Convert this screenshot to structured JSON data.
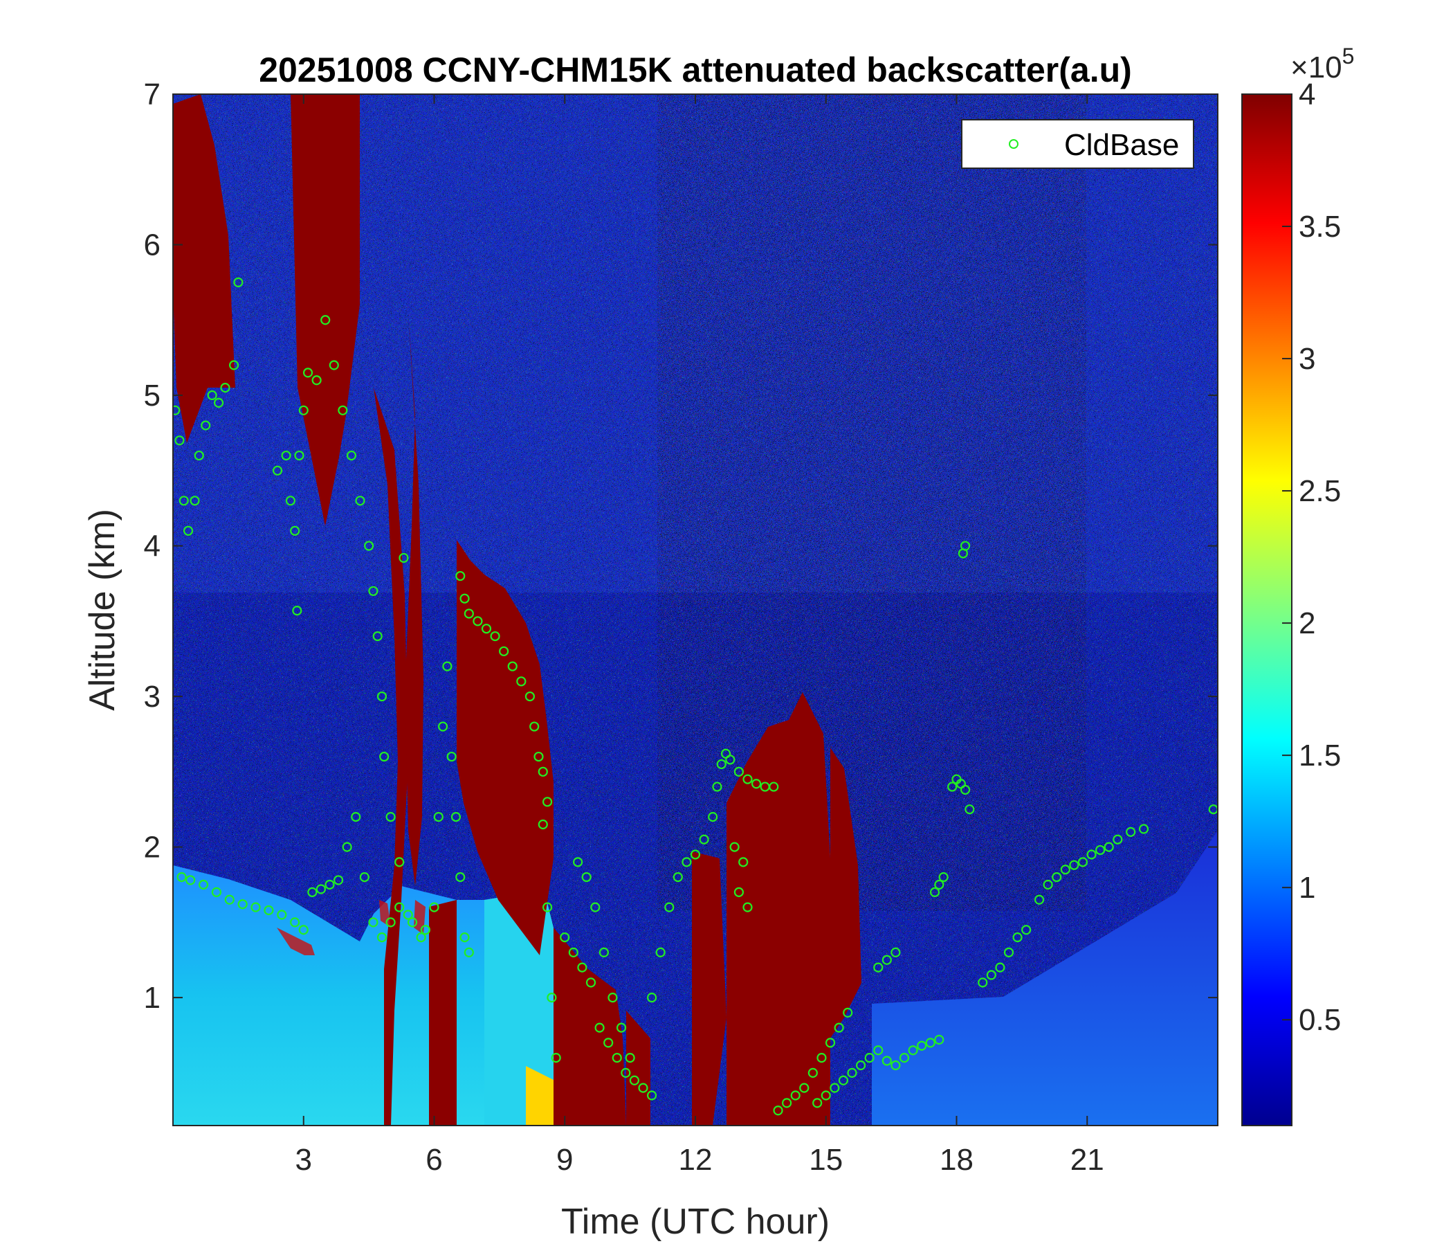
{
  "chart_data": {
    "type": "heatmap",
    "title": "20251008 CCNY-CHM15K attenuated backscatter(a.u)",
    "xlabel": "Time (UTC hour)",
    "ylabel": "Altitude (km)",
    "xlim": [
      0,
      24
    ],
    "ylim": [
      0.15,
      7
    ],
    "xticks": [
      3,
      6,
      9,
      12,
      15,
      18,
      21
    ],
    "xtick_labels": [
      "3",
      "6",
      "9",
      "12",
      "15",
      "18",
      "21"
    ],
    "yticks": [
      1,
      2,
      3,
      4,
      5,
      6,
      7
    ],
    "ytick_labels": [
      "1",
      "2",
      "3",
      "4",
      "5",
      "6",
      "7"
    ],
    "colorbar": {
      "colormap": "jet",
      "range": [
        0.1,
        4
      ],
      "ticks": [
        0.5,
        1,
        1.5,
        2,
        2.5,
        3,
        3.5,
        4
      ],
      "tick_labels": [
        "0.5",
        "1",
        "1.5",
        "2",
        "2.5",
        "3",
        "3.5",
        "4"
      ],
      "multiplier_base": "×10",
      "multiplier_exponent": "5"
    },
    "legend": {
      "position": "top-right",
      "entries": [
        "CldBase"
      ]
    },
    "series": [
      {
        "name": "CldBase",
        "marker": "open-circle",
        "color": "#22ee22",
        "points": [
          [
            0.05,
            4.9
          ],
          [
            0.15,
            4.7
          ],
          [
            0.25,
            4.3
          ],
          [
            0.35,
            4.1
          ],
          [
            0.5,
            4.3
          ],
          [
            0.6,
            4.6
          ],
          [
            0.75,
            4.8
          ],
          [
            0.9,
            5.0
          ],
          [
            1.05,
            4.95
          ],
          [
            1.2,
            5.05
          ],
          [
            1.4,
            5.2
          ],
          [
            1.5,
            5.75
          ],
          [
            0.2,
            1.8
          ],
          [
            0.4,
            1.78
          ],
          [
            0.7,
            1.75
          ],
          [
            1.0,
            1.7
          ],
          [
            1.3,
            1.65
          ],
          [
            1.6,
            1.62
          ],
          [
            1.9,
            1.6
          ],
          [
            2.2,
            1.58
          ],
          [
            2.5,
            1.55
          ],
          [
            2.8,
            1.5
          ],
          [
            3.0,
            1.45
          ],
          [
            2.4,
            4.5
          ],
          [
            2.6,
            4.6
          ],
          [
            2.7,
            4.3
          ],
          [
            2.8,
            4.1
          ],
          [
            2.85,
            3.57
          ],
          [
            2.9,
            4.6
          ],
          [
            3.0,
            4.9
          ],
          [
            3.1,
            5.15
          ],
          [
            3.3,
            5.1
          ],
          [
            3.5,
            5.5
          ],
          [
            3.7,
            5.2
          ],
          [
            3.9,
            4.9
          ],
          [
            4.1,
            4.6
          ],
          [
            4.3,
            4.3
          ],
          [
            4.5,
            4.0
          ],
          [
            4.6,
            3.7
          ],
          [
            4.7,
            3.4
          ],
          [
            4.8,
            3.0
          ],
          [
            4.85,
            2.6
          ],
          [
            5.0,
            2.2
          ],
          [
            5.2,
            1.9
          ],
          [
            5.3,
            3.92
          ],
          [
            5.5,
            1.5
          ],
          [
            5.7,
            1.4
          ],
          [
            3.2,
            1.7
          ],
          [
            3.4,
            1.72
          ],
          [
            3.6,
            1.75
          ],
          [
            3.8,
            1.78
          ],
          [
            4.0,
            2.0
          ],
          [
            4.2,
            2.2
          ],
          [
            4.4,
            1.8
          ],
          [
            4.6,
            1.5
          ],
          [
            4.8,
            1.4
          ],
          [
            5.0,
            1.5
          ],
          [
            5.2,
            1.6
          ],
          [
            5.4,
            1.55
          ],
          [
            5.8,
            1.45
          ],
          [
            6.0,
            1.6
          ],
          [
            6.1,
            2.2
          ],
          [
            6.2,
            2.8
          ],
          [
            6.3,
            3.2
          ],
          [
            6.4,
            2.6
          ],
          [
            6.5,
            2.2
          ],
          [
            6.6,
            1.8
          ],
          [
            6.7,
            1.4
          ],
          [
            6.8,
            1.3
          ],
          [
            6.6,
            3.8
          ],
          [
            6.7,
            3.65
          ],
          [
            6.8,
            3.55
          ],
          [
            7.0,
            3.5
          ],
          [
            7.2,
            3.45
          ],
          [
            7.4,
            3.4
          ],
          [
            7.6,
            3.3
          ],
          [
            7.8,
            3.2
          ],
          [
            8.0,
            3.1
          ],
          [
            8.2,
            3.0
          ],
          [
            8.3,
            2.8
          ],
          [
            8.4,
            2.6
          ],
          [
            8.5,
            2.5
          ],
          [
            8.6,
            2.3
          ],
          [
            8.5,
            2.15
          ],
          [
            8.6,
            1.6
          ],
          [
            8.7,
            1.0
          ],
          [
            8.8,
            0.6
          ],
          [
            9.0,
            1.4
          ],
          [
            9.2,
            1.3
          ],
          [
            9.4,
            1.2
          ],
          [
            9.6,
            1.1
          ],
          [
            9.8,
            0.8
          ],
          [
            10.0,
            0.7
          ],
          [
            10.2,
            0.6
          ],
          [
            10.4,
            0.5
          ],
          [
            10.6,
            0.45
          ],
          [
            10.8,
            0.4
          ],
          [
            11.0,
            0.35
          ],
          [
            9.3,
            1.9
          ],
          [
            9.5,
            1.8
          ],
          [
            9.7,
            1.6
          ],
          [
            9.9,
            1.3
          ],
          [
            10.1,
            1.0
          ],
          [
            10.3,
            0.8
          ],
          [
            10.5,
            0.6
          ],
          [
            11.0,
            1.0
          ],
          [
            11.2,
            1.3
          ],
          [
            11.4,
            1.6
          ],
          [
            11.6,
            1.8
          ],
          [
            11.8,
            1.9
          ],
          [
            12.0,
            1.95
          ],
          [
            12.2,
            2.05
          ],
          [
            12.4,
            2.2
          ],
          [
            12.5,
            2.4
          ],
          [
            12.6,
            2.55
          ],
          [
            12.7,
            2.62
          ],
          [
            12.8,
            2.58
          ],
          [
            13.0,
            2.5
          ],
          [
            13.2,
            2.45
          ],
          [
            13.4,
            2.42
          ],
          [
            13.6,
            2.4
          ],
          [
            13.8,
            2.4
          ],
          [
            12.9,
            2.0
          ],
          [
            13.1,
            1.9
          ],
          [
            13.0,
            1.7
          ],
          [
            13.2,
            1.6
          ],
          [
            13.9,
            0.25
          ],
          [
            14.1,
            0.3
          ],
          [
            14.3,
            0.35
          ],
          [
            14.5,
            0.4
          ],
          [
            14.7,
            0.5
          ],
          [
            14.9,
            0.6
          ],
          [
            15.1,
            0.7
          ],
          [
            15.3,
            0.8
          ],
          [
            15.5,
            0.9
          ],
          [
            14.8,
            0.3
          ],
          [
            15.0,
            0.35
          ],
          [
            15.2,
            0.4
          ],
          [
            15.4,
            0.45
          ],
          [
            15.6,
            0.5
          ],
          [
            15.8,
            0.55
          ],
          [
            16.0,
            0.6
          ],
          [
            16.2,
            0.65
          ],
          [
            16.4,
            0.58
          ],
          [
            16.6,
            0.55
          ],
          [
            16.8,
            0.6
          ],
          [
            17.0,
            0.65
          ],
          [
            17.2,
            0.68
          ],
          [
            17.4,
            0.7
          ],
          [
            17.6,
            0.72
          ],
          [
            16.2,
            1.2
          ],
          [
            16.4,
            1.25
          ],
          [
            16.6,
            1.3
          ],
          [
            17.5,
            1.7
          ],
          [
            17.6,
            1.75
          ],
          [
            17.7,
            1.8
          ],
          [
            17.9,
            2.4
          ],
          [
            18.0,
            2.45
          ],
          [
            18.1,
            2.42
          ],
          [
            18.2,
            2.38
          ],
          [
            18.3,
            2.25
          ],
          [
            18.15,
            3.95
          ],
          [
            18.2,
            4.0
          ],
          [
            18.6,
            1.1
          ],
          [
            18.8,
            1.15
          ],
          [
            19.0,
            1.2
          ],
          [
            19.2,
            1.3
          ],
          [
            19.4,
            1.4
          ],
          [
            19.6,
            1.45
          ],
          [
            19.9,
            1.65
          ],
          [
            20.1,
            1.75
          ],
          [
            20.3,
            1.8
          ],
          [
            20.5,
            1.85
          ],
          [
            20.7,
            1.88
          ],
          [
            20.9,
            1.9
          ],
          [
            21.1,
            1.95
          ],
          [
            21.3,
            1.98
          ],
          [
            21.5,
            2.0
          ],
          [
            21.7,
            2.05
          ],
          [
            22.0,
            2.1
          ],
          [
            22.3,
            2.12
          ],
          [
            23.9,
            2.25
          ]
        ]
      }
    ]
  }
}
